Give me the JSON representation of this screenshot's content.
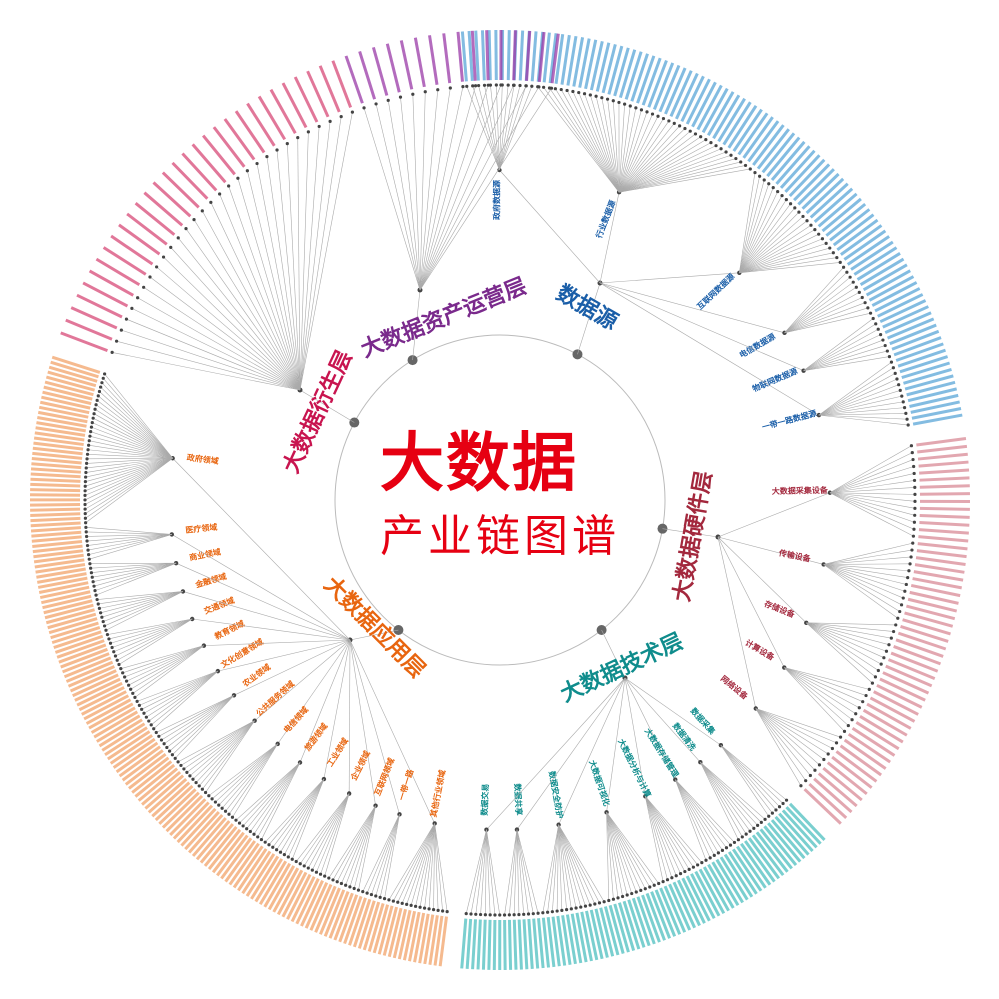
{
  "title": "大数据",
  "subtitle": "产业链图谱",
  "layers": [
    {
      "name": "数据源",
      "color": "#1a5ea8",
      "leaf_color": "#5aa6d8",
      "children": [
        "政府数据源",
        "行业数据源",
        "互联网数据源",
        "电信数据源",
        "物联网数据源",
        "一带一路数据源"
      ]
    },
    {
      "name": "大数据硬件层",
      "color": "#a3283d",
      "leaf_color": "#d98a96",
      "children": [
        "大数据采集设备",
        "传输设备",
        "存储设备",
        "计算设备",
        "网络设备"
      ]
    },
    {
      "name": "大数据技术层",
      "color": "#0f8c8c",
      "leaf_color": "#4ec0c0",
      "children": [
        "数据采集",
        "数据清洗",
        "大数据存储管理",
        "大数据分析与计算",
        "大数据可视化",
        "数据安全防护",
        "数据共享",
        "数据交易"
      ]
    },
    {
      "name": "大数据应用层",
      "color": "#e8650f",
      "leaf_color": "#f2a46a",
      "children": [
        "其他行业领域",
        "一带一路",
        "互联网领域",
        "企业领域",
        "工业领域",
        "旅游领域",
        "电信领域",
        "公共服务领域",
        "农业领域",
        "文化创意领域",
        "教育领域",
        "交通领域",
        "金融领域",
        "商业领域",
        "医疗领域",
        "政府领域"
      ]
    },
    {
      "name": "大数据衍生层",
      "color": "#c8144f",
      "leaf_color": "#d84a78",
      "children": []
    },
    {
      "name": "大数据资产运营层",
      "color": "#7a2a8c",
      "leaf_color": "#9a3aa8",
      "children": []
    }
  ]
}
